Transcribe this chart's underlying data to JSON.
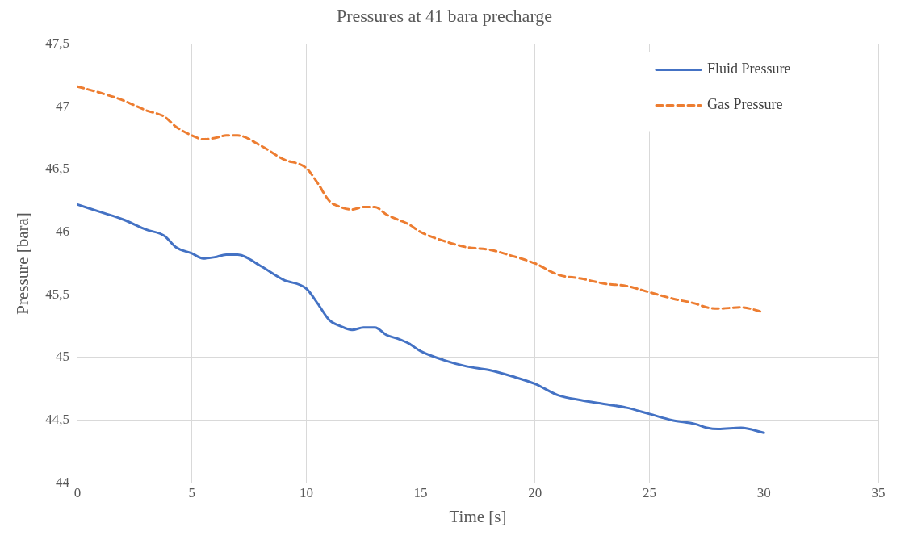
{
  "chart_data": {
    "type": "line",
    "title": "Pressures at 41 bara precharge",
    "xlabel": "Time [s]",
    "ylabel": "Pressure [bara]",
    "xlim": [
      0,
      35
    ],
    "xticks": [
      0,
      5,
      10,
      15,
      20,
      25,
      30,
      35
    ],
    "ylim": [
      44,
      47.5
    ],
    "yticks": [
      44,
      {
        "value": 44.5,
        "label": "44,5"
      },
      45,
      {
        "value": 45.5,
        "label": "45,5"
      },
      46,
      {
        "value": 46.5,
        "label": "46,5"
      },
      47,
      {
        "value": 47.5,
        "label": "47,5"
      }
    ],
    "grid": true,
    "legend": "top right",
    "marker": "none",
    "series": [
      {
        "name": "Fluid Pressure",
        "color": "#4472c4",
        "line_style": "solid",
        "x": [
          0,
          1,
          2,
          3,
          3.8,
          4.3,
          5,
          5.5,
          6,
          6.5,
          7,
          8,
          9,
          10,
          10.5,
          11,
          11.5,
          12,
          12.5,
          13,
          13.5,
          14,
          14.5,
          15,
          16,
          17,
          18,
          19,
          20,
          21,
          22,
          23,
          24,
          25,
          26,
          27,
          27.5,
          28,
          29,
          30
        ],
        "values": [
          46.22,
          46.16,
          46.1,
          46.02,
          45.97,
          45.88,
          45.83,
          45.79,
          45.8,
          45.82,
          45.82,
          45.73,
          45.62,
          45.55,
          45.43,
          45.3,
          45.25,
          45.22,
          45.24,
          45.24,
          45.18,
          45.15,
          45.11,
          45.05,
          44.98,
          44.93,
          44.9,
          44.85,
          44.79,
          44.7,
          44.66,
          44.63,
          44.6,
          44.55,
          44.5,
          44.47,
          44.44,
          44.43,
          44.44,
          44.4
        ]
      },
      {
        "name": "Gas Pressure",
        "color": "#ed7d31",
        "line_style": "dashed",
        "x": [
          0,
          1,
          2,
          3,
          3.8,
          4.3,
          5,
          5.5,
          6,
          6.5,
          7,
          8,
          9,
          10,
          10.5,
          11,
          11.5,
          12,
          12.5,
          13,
          13.5,
          14,
          14.5,
          15,
          16,
          17,
          18,
          19,
          20,
          21,
          22,
          23,
          24,
          25,
          26,
          27,
          27.5,
          28,
          29,
          30
        ],
        "values": [
          47.16,
          47.11,
          47.05,
          46.97,
          46.92,
          46.84,
          46.77,
          46.74,
          46.75,
          46.77,
          46.77,
          46.69,
          46.58,
          46.51,
          46.39,
          46.25,
          46.2,
          46.18,
          46.2,
          46.2,
          46.14,
          46.1,
          46.06,
          46,
          45.93,
          45.88,
          45.86,
          45.81,
          45.75,
          45.66,
          45.63,
          45.59,
          45.57,
          45.52,
          45.47,
          45.43,
          45.4,
          45.39,
          45.4,
          45.36
        ]
      }
    ]
  }
}
